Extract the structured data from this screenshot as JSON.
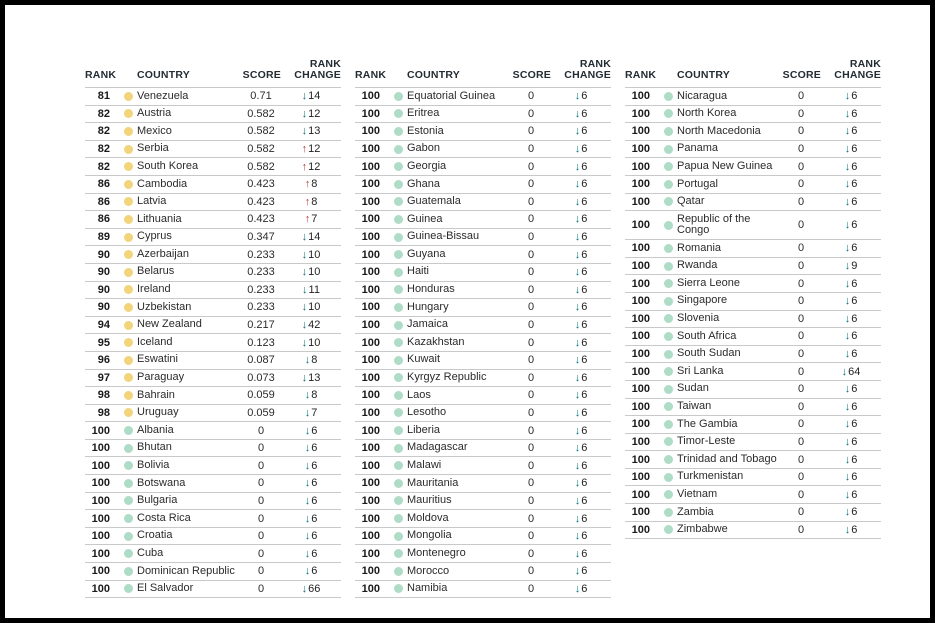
{
  "header": {
    "rank": "RANK",
    "country": "COUNTRY",
    "score": "SCORE",
    "change_line1": "RANK",
    "change_line2": "CHANGE"
  },
  "icons": {
    "arrow_up": "↑",
    "arrow_down": "↓",
    "status_dot_yellow": "yellow-dot",
    "status_dot_teal": "teal-dot"
  },
  "colors": {
    "frame_border": "#000000",
    "header_text": "#232c33",
    "row_line": "#c9c9c9",
    "dot_yellow": "#f2d47c",
    "dot_teal": "#aedcc6",
    "arrow_up": "#c13a30",
    "arrow_down": "#00757a"
  },
  "tables": [
    {
      "rows": [
        {
          "rank": "81",
          "dot": "yellow",
          "country": "Venezuela",
          "score": "0.71",
          "dir": "down",
          "change": "14"
        },
        {
          "rank": "82",
          "dot": "yellow",
          "country": "Austria",
          "score": "0.582",
          "dir": "down",
          "change": "12"
        },
        {
          "rank": "82",
          "dot": "yellow",
          "country": "Mexico",
          "score": "0.582",
          "dir": "down",
          "change": "13"
        },
        {
          "rank": "82",
          "dot": "yellow",
          "country": "Serbia",
          "score": "0.582",
          "dir": "up",
          "change": "12"
        },
        {
          "rank": "82",
          "dot": "yellow",
          "country": "South Korea",
          "score": "0.582",
          "dir": "up",
          "change": "12"
        },
        {
          "rank": "86",
          "dot": "yellow",
          "country": "Cambodia",
          "score": "0.423",
          "dir": "up",
          "change": "8"
        },
        {
          "rank": "86",
          "dot": "yellow",
          "country": "Latvia",
          "score": "0.423",
          "dir": "up",
          "change": "8"
        },
        {
          "rank": "86",
          "dot": "yellow",
          "country": "Lithuania",
          "score": "0.423",
          "dir": "up",
          "change": "7"
        },
        {
          "rank": "89",
          "dot": "yellow",
          "country": "Cyprus",
          "score": "0.347",
          "dir": "down",
          "change": "14"
        },
        {
          "rank": "90",
          "dot": "yellow",
          "country": "Azerbaijan",
          "score": "0.233",
          "dir": "down",
          "change": "10"
        },
        {
          "rank": "90",
          "dot": "yellow",
          "country": "Belarus",
          "score": "0.233",
          "dir": "down",
          "change": "10"
        },
        {
          "rank": "90",
          "dot": "yellow",
          "country": "Ireland",
          "score": "0.233",
          "dir": "down",
          "change": "11"
        },
        {
          "rank": "90",
          "dot": "yellow",
          "country": "Uzbekistan",
          "score": "0.233",
          "dir": "down",
          "change": "10"
        },
        {
          "rank": "94",
          "dot": "yellow",
          "country": "New Zealand",
          "score": "0.217",
          "dir": "down",
          "change": "42"
        },
        {
          "rank": "95",
          "dot": "yellow",
          "country": "Iceland",
          "score": "0.123",
          "dir": "down",
          "change": "10"
        },
        {
          "rank": "96",
          "dot": "yellow",
          "country": "Eswatini",
          "score": "0.087",
          "dir": "down",
          "change": "8"
        },
        {
          "rank": "97",
          "dot": "yellow",
          "country": "Paraguay",
          "score": "0.073",
          "dir": "down",
          "change": "13"
        },
        {
          "rank": "98",
          "dot": "yellow",
          "country": "Bahrain",
          "score": "0.059",
          "dir": "down",
          "change": "8"
        },
        {
          "rank": "98",
          "dot": "yellow",
          "country": "Uruguay",
          "score": "0.059",
          "dir": "down",
          "change": "7"
        },
        {
          "rank": "100",
          "dot": "teal",
          "country": "Albania",
          "score": "0",
          "dir": "down",
          "change": "6"
        },
        {
          "rank": "100",
          "dot": "teal",
          "country": "Bhutan",
          "score": "0",
          "dir": "down",
          "change": "6"
        },
        {
          "rank": "100",
          "dot": "teal",
          "country": "Bolivia",
          "score": "0",
          "dir": "down",
          "change": "6"
        },
        {
          "rank": "100",
          "dot": "teal",
          "country": "Botswana",
          "score": "0",
          "dir": "down",
          "change": "6"
        },
        {
          "rank": "100",
          "dot": "teal",
          "country": "Bulgaria",
          "score": "0",
          "dir": "down",
          "change": "6"
        },
        {
          "rank": "100",
          "dot": "teal",
          "country": "Costa Rica",
          "score": "0",
          "dir": "down",
          "change": "6"
        },
        {
          "rank": "100",
          "dot": "teal",
          "country": "Croatia",
          "score": "0",
          "dir": "down",
          "change": "6"
        },
        {
          "rank": "100",
          "dot": "teal",
          "country": "Cuba",
          "score": "0",
          "dir": "down",
          "change": "6"
        },
        {
          "rank": "100",
          "dot": "teal",
          "country": "Dominican Republic",
          "score": "0",
          "dir": "down",
          "change": "6"
        },
        {
          "rank": "100",
          "dot": "teal",
          "country": "El Salvador",
          "score": "0",
          "dir": "down",
          "change": "66"
        }
      ]
    },
    {
      "rows": [
        {
          "rank": "100",
          "dot": "teal",
          "country": "Equatorial Guinea",
          "score": "0",
          "dir": "down",
          "change": "6"
        },
        {
          "rank": "100",
          "dot": "teal",
          "country": "Eritrea",
          "score": "0",
          "dir": "down",
          "change": "6"
        },
        {
          "rank": "100",
          "dot": "teal",
          "country": "Estonia",
          "score": "0",
          "dir": "down",
          "change": "6"
        },
        {
          "rank": "100",
          "dot": "teal",
          "country": "Gabon",
          "score": "0",
          "dir": "down",
          "change": "6"
        },
        {
          "rank": "100",
          "dot": "teal",
          "country": "Georgia",
          "score": "0",
          "dir": "down",
          "change": "6"
        },
        {
          "rank": "100",
          "dot": "teal",
          "country": "Ghana",
          "score": "0",
          "dir": "down",
          "change": "6"
        },
        {
          "rank": "100",
          "dot": "teal",
          "country": "Guatemala",
          "score": "0",
          "dir": "down",
          "change": "6"
        },
        {
          "rank": "100",
          "dot": "teal",
          "country": "Guinea",
          "score": "0",
          "dir": "down",
          "change": "6"
        },
        {
          "rank": "100",
          "dot": "teal",
          "country": "Guinea-Bissau",
          "score": "0",
          "dir": "down",
          "change": "6"
        },
        {
          "rank": "100",
          "dot": "teal",
          "country": "Guyana",
          "score": "0",
          "dir": "down",
          "change": "6"
        },
        {
          "rank": "100",
          "dot": "teal",
          "country": "Haiti",
          "score": "0",
          "dir": "down",
          "change": "6"
        },
        {
          "rank": "100",
          "dot": "teal",
          "country": "Honduras",
          "score": "0",
          "dir": "down",
          "change": "6"
        },
        {
          "rank": "100",
          "dot": "teal",
          "country": "Hungary",
          "score": "0",
          "dir": "down",
          "change": "6"
        },
        {
          "rank": "100",
          "dot": "teal",
          "country": "Jamaica",
          "score": "0",
          "dir": "down",
          "change": "6"
        },
        {
          "rank": "100",
          "dot": "teal",
          "country": "Kazakhstan",
          "score": "0",
          "dir": "down",
          "change": "6"
        },
        {
          "rank": "100",
          "dot": "teal",
          "country": "Kuwait",
          "score": "0",
          "dir": "down",
          "change": "6"
        },
        {
          "rank": "100",
          "dot": "teal",
          "country": "Kyrgyz Republic",
          "score": "0",
          "dir": "down",
          "change": "6"
        },
        {
          "rank": "100",
          "dot": "teal",
          "country": "Laos",
          "score": "0",
          "dir": "down",
          "change": "6"
        },
        {
          "rank": "100",
          "dot": "teal",
          "country": "Lesotho",
          "score": "0",
          "dir": "down",
          "change": "6"
        },
        {
          "rank": "100",
          "dot": "teal",
          "country": "Liberia",
          "score": "0",
          "dir": "down",
          "change": "6"
        },
        {
          "rank": "100",
          "dot": "teal",
          "country": "Madagascar",
          "score": "0",
          "dir": "down",
          "change": "6"
        },
        {
          "rank": "100",
          "dot": "teal",
          "country": "Malawi",
          "score": "0",
          "dir": "down",
          "change": "6"
        },
        {
          "rank": "100",
          "dot": "teal",
          "country": "Mauritania",
          "score": "0",
          "dir": "down",
          "change": "6"
        },
        {
          "rank": "100",
          "dot": "teal",
          "country": "Mauritius",
          "score": "0",
          "dir": "down",
          "change": "6"
        },
        {
          "rank": "100",
          "dot": "teal",
          "country": "Moldova",
          "score": "0",
          "dir": "down",
          "change": "6"
        },
        {
          "rank": "100",
          "dot": "teal",
          "country": "Mongolia",
          "score": "0",
          "dir": "down",
          "change": "6"
        },
        {
          "rank": "100",
          "dot": "teal",
          "country": "Montenegro",
          "score": "0",
          "dir": "down",
          "change": "6"
        },
        {
          "rank": "100",
          "dot": "teal",
          "country": "Morocco",
          "score": "0",
          "dir": "down",
          "change": "6"
        },
        {
          "rank": "100",
          "dot": "teal",
          "country": "Namibia",
          "score": "0",
          "dir": "down",
          "change": "6"
        }
      ]
    },
    {
      "rows": [
        {
          "rank": "100",
          "dot": "teal",
          "country": "Nicaragua",
          "score": "0",
          "dir": "down",
          "change": "6"
        },
        {
          "rank": "100",
          "dot": "teal",
          "country": "North Korea",
          "score": "0",
          "dir": "down",
          "change": "6"
        },
        {
          "rank": "100",
          "dot": "teal",
          "country": "North Macedonia",
          "score": "0",
          "dir": "down",
          "change": "6"
        },
        {
          "rank": "100",
          "dot": "teal",
          "country": "Panama",
          "score": "0",
          "dir": "down",
          "change": "6"
        },
        {
          "rank": "100",
          "dot": "teal",
          "country": "Papua New Guinea",
          "score": "0",
          "dir": "down",
          "change": "6"
        },
        {
          "rank": "100",
          "dot": "teal",
          "country": "Portugal",
          "score": "0",
          "dir": "down",
          "change": "6"
        },
        {
          "rank": "100",
          "dot": "teal",
          "country": "Qatar",
          "score": "0",
          "dir": "down",
          "change": "6"
        },
        {
          "rank": "100",
          "dot": "teal",
          "country": "Republic of the Congo",
          "score": "0",
          "dir": "down",
          "change": "6",
          "tall": true
        },
        {
          "rank": "100",
          "dot": "teal",
          "country": "Romania",
          "score": "0",
          "dir": "down",
          "change": "6"
        },
        {
          "rank": "100",
          "dot": "teal",
          "country": "Rwanda",
          "score": "0",
          "dir": "down",
          "change": "9"
        },
        {
          "rank": "100",
          "dot": "teal",
          "country": "Sierra Leone",
          "score": "0",
          "dir": "down",
          "change": "6"
        },
        {
          "rank": "100",
          "dot": "teal",
          "country": "Singapore",
          "score": "0",
          "dir": "down",
          "change": "6"
        },
        {
          "rank": "100",
          "dot": "teal",
          "country": "Slovenia",
          "score": "0",
          "dir": "down",
          "change": "6"
        },
        {
          "rank": "100",
          "dot": "teal",
          "country": "South Africa",
          "score": "0",
          "dir": "down",
          "change": "6"
        },
        {
          "rank": "100",
          "dot": "teal",
          "country": "South Sudan",
          "score": "0",
          "dir": "down",
          "change": "6"
        },
        {
          "rank": "100",
          "dot": "teal",
          "country": "Sri Lanka",
          "score": "0",
          "dir": "down",
          "change": "64"
        },
        {
          "rank": "100",
          "dot": "teal",
          "country": "Sudan",
          "score": "0",
          "dir": "down",
          "change": "6"
        },
        {
          "rank": "100",
          "dot": "teal",
          "country": "Taiwan",
          "score": "0",
          "dir": "down",
          "change": "6"
        },
        {
          "rank": "100",
          "dot": "teal",
          "country": "The Gambia",
          "score": "0",
          "dir": "down",
          "change": "6"
        },
        {
          "rank": "100",
          "dot": "teal",
          "country": "Timor-Leste",
          "score": "0",
          "dir": "down",
          "change": "6"
        },
        {
          "rank": "100",
          "dot": "teal",
          "country": "Trinidad and Tobago",
          "score": "0",
          "dir": "down",
          "change": "6"
        },
        {
          "rank": "100",
          "dot": "teal",
          "country": "Turkmenistan",
          "score": "0",
          "dir": "down",
          "change": "6"
        },
        {
          "rank": "100",
          "dot": "teal",
          "country": "Vietnam",
          "score": "0",
          "dir": "down",
          "change": "6"
        },
        {
          "rank": "100",
          "dot": "teal",
          "country": "Zambia",
          "score": "0",
          "dir": "down",
          "change": "6"
        },
        {
          "rank": "100",
          "dot": "teal",
          "country": "Zimbabwe",
          "score": "0",
          "dir": "down",
          "change": "6"
        }
      ]
    }
  ]
}
